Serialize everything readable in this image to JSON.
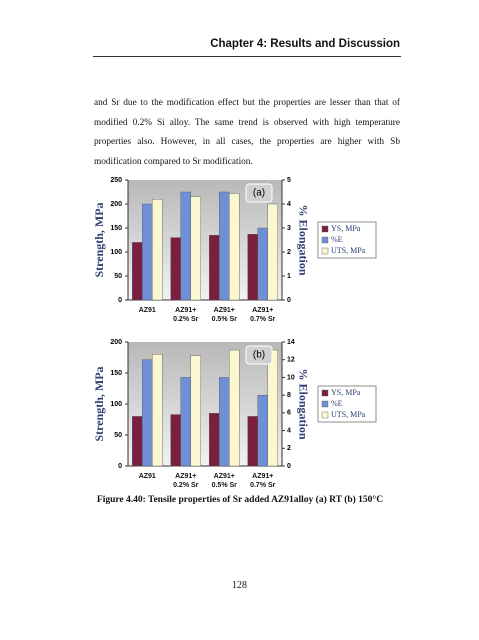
{
  "header": {
    "title": "Chapter 4: Results and Discussion"
  },
  "body": {
    "paragraph": "and Sr due to the modification effect but the properties are lesser than that of modified 0.2% Si alloy. The same trend is observed with high temperature properties also. However, in all cases, the properties are higher with Sb modification compared to Sr modification."
  },
  "chart_data": [
    {
      "type": "bar",
      "annotation": "(a)",
      "ylabel": "Strength, MPa",
      "y2label": "% Elongation",
      "categories": [
        "AZ91",
        "AZ91+\n0.2% Sr",
        "AZ91+\n0.5% Sr",
        "AZ91+\n0.7% Sr"
      ],
      "series": [
        {
          "name": "YS, MPa",
          "color": "#7a1f3d",
          "values": [
            120,
            130,
            135,
            137
          ]
        },
        {
          "name": "%E",
          "color": "#6f8fd6",
          "axis": "y2",
          "values": [
            4.0,
            4.5,
            4.5,
            3.0
          ]
        },
        {
          "name": "UTS, MPa",
          "color": "#fbf8cf",
          "values": [
            210,
            215,
            222,
            200
          ]
        }
      ],
      "ylim": [
        0,
        250
      ],
      "yticks": [
        0,
        50,
        100,
        150,
        200,
        250
      ],
      "y2lim": [
        0,
        5
      ],
      "y2ticks": [
        0,
        1,
        2,
        3,
        4,
        5
      ],
      "legend": "right"
    },
    {
      "type": "bar",
      "annotation": "(b)",
      "ylabel": "Strength, MPa",
      "y2label": "% Elongation",
      "categories": [
        "AZ91",
        "AZ91+\n0.2% Sr",
        "AZ91+\n0.5% Sr",
        "AZ91+\n0.7% Sr"
      ],
      "series": [
        {
          "name": "YS, MPa",
          "color": "#7a1f3d",
          "values": [
            80,
            83,
            85,
            80
          ]
        },
        {
          "name": "%E",
          "color": "#6f8fd6",
          "axis": "y2",
          "values": [
            12,
            10,
            10,
            8
          ]
        },
        {
          "name": "UTS, MPa",
          "color": "#fbf8cf",
          "values": [
            180,
            178,
            187,
            187
          ]
        }
      ],
      "ylim": [
        0,
        200
      ],
      "yticks": [
        0,
        50,
        100,
        150,
        200
      ],
      "y2lim": [
        0,
        14
      ],
      "y2ticks": [
        0,
        2,
        4,
        6,
        8,
        10,
        12,
        14
      ],
      "legend": "right"
    }
  ],
  "figure": {
    "caption": "Figure 4.40: Tensile properties of Sr added AZ91alloy (a) RT (b) 150°C"
  },
  "footer": {
    "page_number": "128"
  }
}
